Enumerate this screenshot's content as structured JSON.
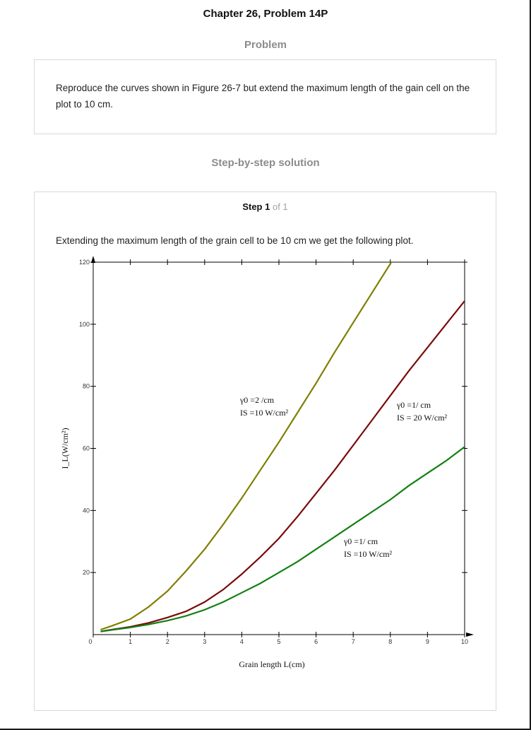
{
  "header": {
    "title": "Chapter 26, Problem 14P"
  },
  "problem": {
    "heading": "Problem",
    "text": "Reproduce the curves shown in Figure 26-7 but extend the maximum length of the gain cell on the plot to 10 cm."
  },
  "solution": {
    "heading": "Step-by-step solution",
    "step_word": "Step 1",
    "step_of": "of 1",
    "text": "Extending the maximum length of the grain cell to be 10 cm we get the following plot."
  },
  "chart_data": {
    "type": "line",
    "xlabel": "Grain length L(cm)",
    "ylabel": "I_L(W/cm²)",
    "xlim": [
      0,
      10
    ],
    "ylim": [
      0,
      120
    ],
    "x_ticks": [
      "0",
      "1",
      "2",
      "3",
      "4",
      "5",
      "6",
      "7",
      "8",
      "9",
      "10"
    ],
    "y_ticks": [
      "20",
      "40",
      "60",
      "80",
      "100",
      "120"
    ],
    "series": [
      {
        "color": "#7f7f00",
        "label_line1": "γ0 =2 /cm",
        "label_line2": "IS =10 W/cm²",
        "points": [
          [
            0.2,
            1.6
          ],
          [
            0.5,
            2.8
          ],
          [
            1,
            5
          ],
          [
            1.5,
            9
          ],
          [
            2,
            14
          ],
          [
            2.5,
            20.5
          ],
          [
            3,
            27.5
          ],
          [
            3.5,
            35.5
          ],
          [
            4,
            44
          ],
          [
            4.5,
            53
          ],
          [
            5,
            62
          ],
          [
            5.5,
            71.5
          ],
          [
            6,
            81
          ],
          [
            6.5,
            91
          ],
          [
            7,
            100.5
          ],
          [
            7.5,
            110
          ],
          [
            8,
            119.5
          ],
          [
            8.2,
            123.5
          ]
        ]
      },
      {
        "color": "#7a0a0a",
        "label_line1": "γ0 =1/ cm",
        "label_line2": "IS = 20 W/cm²",
        "points": [
          [
            0.2,
            1
          ],
          [
            0.5,
            1.6
          ],
          [
            1,
            2.5
          ],
          [
            1.5,
            3.8
          ],
          [
            2,
            5.5
          ],
          [
            2.5,
            7.5
          ],
          [
            3,
            10.5
          ],
          [
            3.5,
            14.5
          ],
          [
            4,
            19.5
          ],
          [
            4.5,
            25
          ],
          [
            5,
            31
          ],
          [
            5.5,
            38
          ],
          [
            6,
            45.5
          ],
          [
            6.5,
            53
          ],
          [
            7,
            61
          ],
          [
            7.5,
            69
          ],
          [
            8,
            77
          ],
          [
            8.5,
            85
          ],
          [
            9,
            92.5
          ],
          [
            9.5,
            100
          ],
          [
            10,
            107.5
          ]
        ]
      },
      {
        "color": "#128012",
        "label_line1": "γ0 =1/ cm",
        "label_line2": "IS =10 W/cm²",
        "points": [
          [
            0.2,
            1
          ],
          [
            0.5,
            1.5
          ],
          [
            1,
            2.3
          ],
          [
            1.5,
            3.3
          ],
          [
            2,
            4.5
          ],
          [
            2.5,
            6
          ],
          [
            3,
            8
          ],
          [
            3.5,
            10.5
          ],
          [
            4,
            13.5
          ],
          [
            4.5,
            16.5
          ],
          [
            5,
            20
          ],
          [
            5.5,
            23.5
          ],
          [
            6,
            27.5
          ],
          [
            6.5,
            31.5
          ],
          [
            7,
            35.5
          ],
          [
            7.5,
            39.5
          ],
          [
            8,
            43.5
          ],
          [
            8.5,
            48
          ],
          [
            9,
            52
          ],
          [
            9.5,
            56
          ],
          [
            10,
            60.5
          ]
        ]
      }
    ]
  }
}
